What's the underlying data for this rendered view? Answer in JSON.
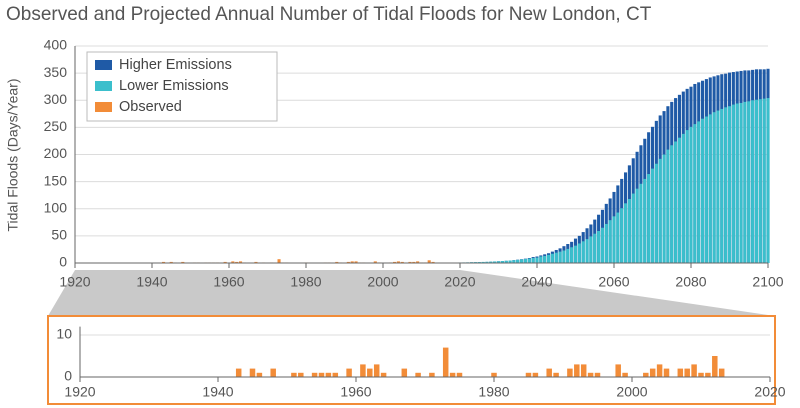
{
  "chart_data": [
    {
      "type": "bar",
      "title": "Observed and Projected Annual Number of Tidal Floods for New London, CT",
      "y_label": "Tidal Floods (Days/Year)",
      "xlim": [
        1920,
        2100
      ],
      "xticks": [
        1920,
        1940,
        1960,
        1980,
        2000,
        2020,
        2040,
        2060,
        2080,
        2100
      ],
      "ylim": [
        0,
        400
      ],
      "yticks": [
        0,
        50,
        100,
        150,
        200,
        250,
        300,
        350,
        400
      ],
      "grid": true,
      "legend": "upper left",
      "series": [
        {
          "name": "Higher Emissions",
          "color": "#1f5aa6",
          "x": [
            2010,
            2011,
            2012,
            2013,
            2014,
            2015,
            2016,
            2017,
            2018,
            2019,
            2020,
            2021,
            2022,
            2023,
            2024,
            2025,
            2026,
            2027,
            2028,
            2029,
            2030,
            2031,
            2032,
            2033,
            2034,
            2035,
            2036,
            2037,
            2038,
            2039,
            2040,
            2041,
            2042,
            2043,
            2044,
            2045,
            2046,
            2047,
            2048,
            2049,
            2050,
            2051,
            2052,
            2053,
            2054,
            2055,
            2056,
            2057,
            2058,
            2059,
            2060,
            2061,
            2062,
            2063,
            2064,
            2065,
            2066,
            2067,
            2068,
            2069,
            2070,
            2071,
            2072,
            2073,
            2074,
            2075,
            2076,
            2077,
            2078,
            2079,
            2080,
            2081,
            2082,
            2083,
            2084,
            2085,
            2086,
            2087,
            2088,
            2089,
            2090,
            2091,
            2092,
            2093,
            2094,
            2095,
            2096,
            2097,
            2098,
            2099,
            2100
          ],
          "values": [
            0.2,
            0.2,
            0.2,
            0.3,
            0.3,
            0.4,
            0.4,
            0.5,
            0.6,
            0.7,
            0.8,
            0.9,
            1.0,
            1.2,
            1.3,
            1.5,
            1.8,
            2.0,
            2.3,
            2.7,
            3.1,
            3.5,
            4.0,
            4.6,
            5.3,
            6.1,
            7.0,
            8.0,
            9.2,
            11,
            12,
            14,
            16,
            18,
            21,
            24,
            27,
            31,
            35,
            39,
            45,
            50,
            57,
            64,
            71,
            80,
            89,
            98,
            109,
            119,
            131,
            143,
            155,
            167,
            180,
            193,
            205,
            217,
            229,
            241,
            251,
            262,
            272,
            280,
            289,
            297,
            304,
            310,
            316,
            321,
            325,
            330,
            333,
            336,
            339,
            342,
            344,
            346,
            348,
            349,
            351,
            352,
            353,
            354,
            355,
            355,
            356,
            357,
            357,
            357,
            358
          ]
        },
        {
          "name": "Lower Emissions",
          "color": "#3bbfcc",
          "x": [
            2010,
            2011,
            2012,
            2013,
            2014,
            2015,
            2016,
            2017,
            2018,
            2019,
            2020,
            2021,
            2022,
            2023,
            2024,
            2025,
            2026,
            2027,
            2028,
            2029,
            2030,
            2031,
            2032,
            2033,
            2034,
            2035,
            2036,
            2037,
            2038,
            2039,
            2040,
            2041,
            2042,
            2043,
            2044,
            2045,
            2046,
            2047,
            2048,
            2049,
            2050,
            2051,
            2052,
            2053,
            2054,
            2055,
            2056,
            2057,
            2058,
            2059,
            2060,
            2061,
            2062,
            2063,
            2064,
            2065,
            2066,
            2067,
            2068,
            2069,
            2070,
            2071,
            2072,
            2073,
            2074,
            2075,
            2076,
            2077,
            2078,
            2079,
            2080,
            2081,
            2082,
            2083,
            2084,
            2085,
            2086,
            2087,
            2088,
            2089,
            2090,
            2091,
            2092,
            2093,
            2094,
            2095,
            2096,
            2097,
            2098,
            2099,
            2100
          ],
          "values": [
            0.3,
            0.3,
            0.4,
            0.4,
            0.5,
            0.5,
            0.6,
            0.7,
            0.8,
            0.9,
            1.0,
            1.1,
            1.2,
            1.4,
            1.6,
            1.8,
            2.0,
            2.2,
            2.5,
            2.9,
            3.2,
            3.6,
            4.1,
            4.6,
            5.2,
            5.8,
            6.5,
            7.3,
            8.2,
            9.3,
            10,
            12,
            13,
            15,
            17,
            19,
            21,
            23,
            26,
            29,
            32,
            36,
            40,
            44,
            49,
            54,
            59,
            65,
            72,
            79,
            86,
            93,
            101,
            110,
            118,
            128,
            137,
            146,
            155,
            164,
            174,
            183,
            192,
            200,
            209,
            217,
            224,
            231,
            238,
            245,
            251,
            256,
            261,
            266,
            270,
            274,
            278,
            281,
            284,
            287,
            289,
            292,
            294,
            295,
            297,
            298,
            300,
            301,
            302,
            303,
            304
          ]
        },
        {
          "name": "Observed",
          "color": "#f28c38",
          "x": [
            1943,
            1945,
            1946,
            1948,
            1951,
            1952,
            1954,
            1955,
            1956,
            1957,
            1959,
            1961,
            1962,
            1963,
            1964,
            1967,
            1969,
            1971,
            1973,
            1974,
            1975,
            1980,
            1985,
            1986,
            1988,
            1989,
            1991,
            1992,
            1993,
            1994,
            1995,
            1998,
            1999,
            2002,
            2003,
            2004,
            2005,
            2007,
            2008,
            2009,
            2010,
            2011,
            2012,
            2013
          ],
          "values": [
            2,
            2,
            1,
            2,
            1,
            1,
            1,
            1,
            1,
            1,
            2,
            3,
            2,
            3,
            1,
            2,
            1,
            1,
            7,
            1,
            1,
            1,
            1,
            1,
            2,
            1,
            2,
            3,
            3,
            1,
            1,
            3,
            1,
            1,
            2,
            3,
            2,
            2,
            2,
            3,
            1,
            1,
            5,
            2
          ]
        }
      ]
    },
    {
      "type": "bar",
      "xlim": [
        1920,
        2020
      ],
      "xticks": [
        1920,
        1940,
        1960,
        1980,
        2000,
        2020
      ],
      "ylim": [
        0,
        12
      ],
      "yticks": [
        0,
        10
      ],
      "grid": true,
      "color": "#f28c38",
      "x": [
        1943,
        1945,
        1946,
        1948,
        1951,
        1952,
        1954,
        1955,
        1956,
        1957,
        1959,
        1961,
        1962,
        1963,
        1964,
        1967,
        1969,
        1971,
        1973,
        1974,
        1975,
        1980,
        1985,
        1986,
        1988,
        1989,
        1991,
        1992,
        1993,
        1994,
        1995,
        1998,
        1999,
        2002,
        2003,
        2004,
        2005,
        2007,
        2008,
        2009,
        2010,
        2011,
        2012,
        2013
      ],
      "values": [
        2,
        2,
        1,
        2,
        1,
        1,
        1,
        1,
        1,
        1,
        2,
        3,
        2,
        3,
        1,
        2,
        1,
        1,
        7,
        1,
        1,
        1,
        1,
        1,
        2,
        1,
        2,
        3,
        3,
        1,
        1,
        3,
        1,
        1,
        2,
        3,
        2,
        2,
        2,
        3,
        1,
        1,
        5,
        2
      ]
    }
  ]
}
